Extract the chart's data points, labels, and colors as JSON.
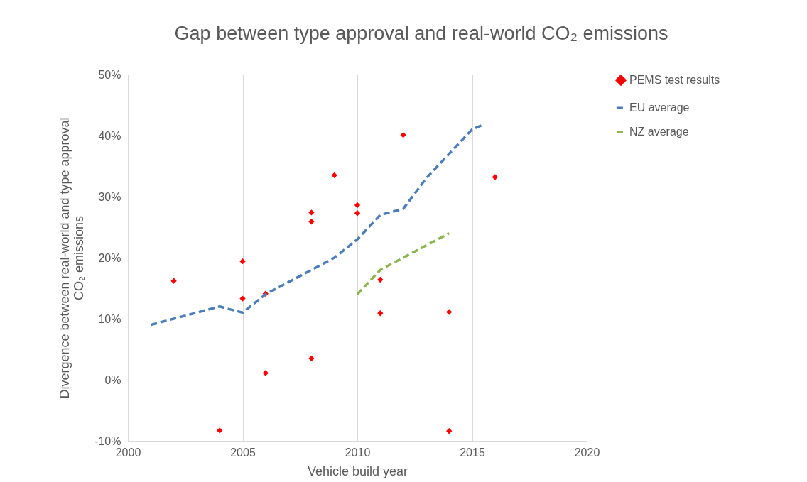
{
  "chart_data": {
    "type": "scatter",
    "title": "Gap between type approval and real-world CO₂ emissions",
    "xlabel": "Vehicle build year",
    "ylabel": "Divergence between real-world and type approval\nCO₂ emissions",
    "xlim": [
      2000,
      2020
    ],
    "xticks": [
      2000,
      2005,
      2010,
      2015,
      2020
    ],
    "ylim": [
      -10,
      50
    ],
    "yticks": [
      {
        "value": -10,
        "label": "-10%"
      },
      {
        "value": 0,
        "label": "0%"
      },
      {
        "value": 10,
        "label": "10%"
      },
      {
        "value": 20,
        "label": "20%"
      },
      {
        "value": 30,
        "label": "30%"
      },
      {
        "value": 40,
        "label": "40%"
      },
      {
        "value": 50,
        "label": "50%"
      }
    ],
    "grid": true,
    "legend": "right",
    "series": [
      {
        "name": "PEMS test results",
        "marker": "diamond",
        "color": "#ff0000",
        "x": [
          2002,
          2004,
          2005,
          2005,
          2006,
          2006,
          2008,
          2008,
          2008,
          2009,
          2010,
          2010,
          2011,
          2011,
          2012,
          2014,
          2014,
          2016
        ],
        "values": [
          16.2,
          -8.3,
          19.4,
          13.3,
          14.1,
          1.1,
          27.4,
          25.9,
          3.5,
          33.5,
          28.6,
          27.3,
          16.4,
          10.9,
          40.1,
          11.1,
          -8.4,
          33.2
        ]
      },
      {
        "name": "EU average",
        "type": "line",
        "line_style": "dashed",
        "color": "#4a7ebb",
        "x": [
          2001,
          2002,
          2004,
          2005,
          2006,
          2008,
          2009,
          2010,
          2011,
          2012,
          2013,
          2014,
          2015,
          2015.5
        ],
        "values": [
          9,
          10,
          12,
          11,
          14,
          18,
          20,
          23,
          27,
          28,
          33,
          37,
          41,
          41.8
        ]
      },
      {
        "name": "NZ average",
        "type": "line",
        "line_style": "dashed",
        "color": "#8db550",
        "x": [
          2010,
          2011,
          2012,
          2013,
          2014
        ],
        "values": [
          14,
          18,
          20,
          22,
          24
        ]
      }
    ]
  }
}
